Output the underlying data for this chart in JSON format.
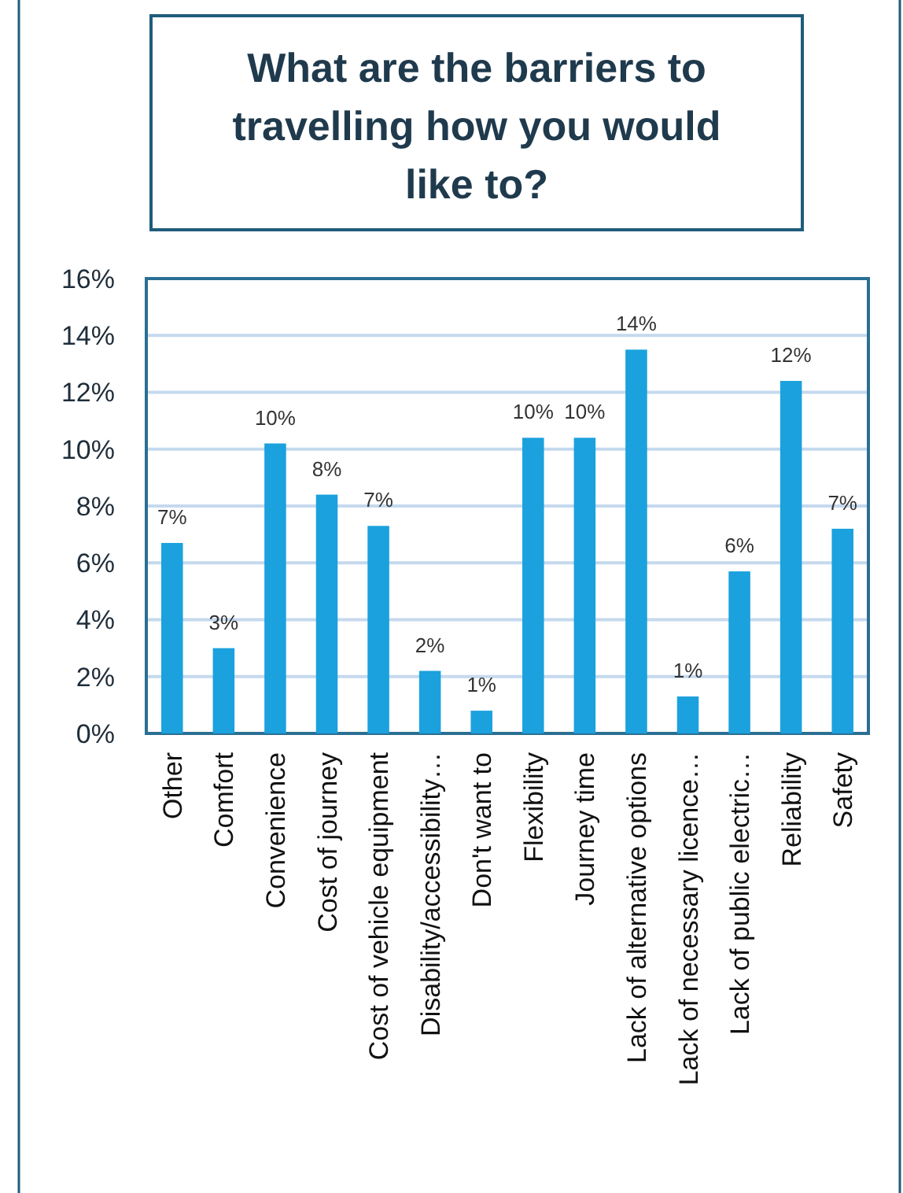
{
  "chart_data": {
    "type": "bar",
    "title": "What are the barriers to travelling how you would like to?",
    "categories": [
      "Other",
      "Comfort",
      "Convenience",
      "Cost of journey",
      "Cost of vehicle equipment",
      "Disability/accessibility…",
      "Don't want to",
      "Flexibility",
      "Journey time",
      "Lack of alternative options",
      "Lack of necessary licence…",
      "Lack of public electric…",
      "Reliability",
      "Safety"
    ],
    "values": [
      6.7,
      3.0,
      10.2,
      8.4,
      7.3,
      2.2,
      0.8,
      10.4,
      10.4,
      13.5,
      1.3,
      5.7,
      12.4,
      7.2
    ],
    "value_labels": [
      "7%",
      "3%",
      "10%",
      "8%",
      "7%",
      "2%",
      "1%",
      "10%",
      "10%",
      "14%",
      "1%",
      "6%",
      "12%",
      "7%"
    ],
    "color": "#1ba1dd",
    "ylim": [
      0,
      16
    ],
    "yticks": [
      {
        "value": 0,
        "label": "0%"
      },
      {
        "value": 2,
        "label": "2%"
      },
      {
        "value": 4,
        "label": "4%"
      },
      {
        "value": 6,
        "label": "6%"
      },
      {
        "value": 8,
        "label": "8%"
      },
      {
        "value": 10,
        "label": "10%"
      },
      {
        "value": 12,
        "label": "12%"
      },
      {
        "value": 14,
        "label": "14%"
      },
      {
        "value": 16,
        "label": "16%"
      }
    ],
    "grid": "y"
  }
}
